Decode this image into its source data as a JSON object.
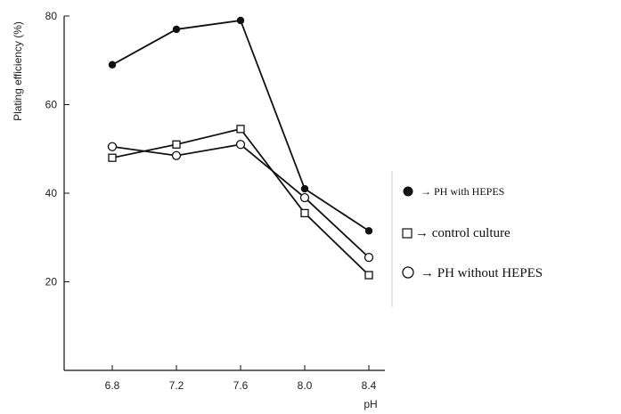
{
  "chart_data": {
    "type": "line",
    "xlabel": "pH",
    "ylabel": "Plating efficiency (%)",
    "x": [
      6.8,
      7.2,
      7.6,
      8.0,
      8.4
    ],
    "x_tick_labels": [
      "6.8",
      "7.2",
      "7.6",
      "8.0",
      "8.4"
    ],
    "xlim": [
      6.5,
      8.5
    ],
    "ylim": [
      0,
      80
    ],
    "y_ticks": [
      20,
      40,
      60,
      80
    ],
    "y_tick_labels": [
      "20",
      "40",
      "60",
      "80"
    ],
    "grid": false,
    "legend_placement": "right",
    "series": [
      {
        "key": "with",
        "name": "→ PH with HEPES",
        "marker": "filled-circle",
        "color": "#111111",
        "values": [
          69,
          77,
          79,
          41,
          31.5
        ]
      },
      {
        "key": "control",
        "name": "→ control culture",
        "marker": "open-square",
        "color": "#111111",
        "values": [
          48,
          51,
          54.5,
          35.5,
          21.5
        ]
      },
      {
        "key": "without",
        "name": "→ PH without HEPES",
        "marker": "open-circle",
        "color": "#111111",
        "values": [
          50.5,
          48.5,
          51,
          39,
          25.5
        ]
      }
    ]
  }
}
